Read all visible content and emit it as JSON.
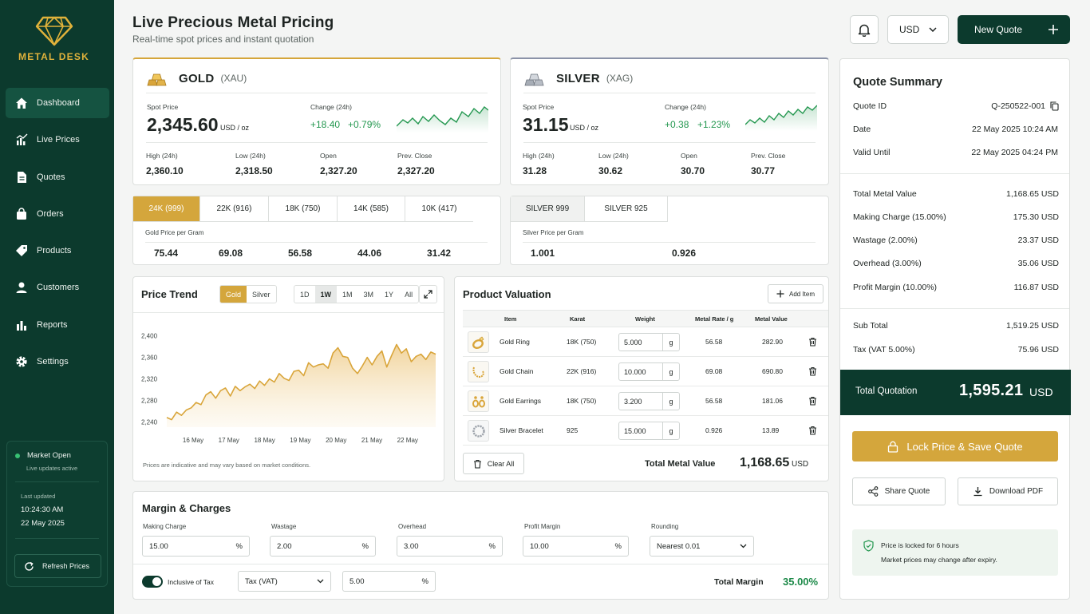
{
  "brand": {
    "name": "METAL DESK"
  },
  "nav": [
    {
      "label": "Dashboard",
      "icon": "home-icon",
      "active": true
    },
    {
      "label": "Live Prices",
      "icon": "bar-chart-icon"
    },
    {
      "label": "Quotes",
      "icon": "document-icon"
    },
    {
      "label": "Orders",
      "icon": "bag-icon"
    },
    {
      "label": "Products",
      "icon": "tag-icon"
    },
    {
      "label": "Customers",
      "icon": "user-icon"
    },
    {
      "label": "Reports",
      "icon": "report-icon"
    },
    {
      "label": "Settings",
      "icon": "gear-icon"
    }
  ],
  "market": {
    "status": "Market Open",
    "sub": "Live updates active",
    "last_updated_label": "Last updated",
    "time": "10:24:30 AM",
    "date": "22 May 2025",
    "refresh_label": "Refresh Prices"
  },
  "header": {
    "title": "Live Precious Metal Pricing",
    "subtitle": "Real-time spot prices and instant quotation",
    "currency": "USD",
    "new_quote_label": "New Quote"
  },
  "gold": {
    "name": "GOLD",
    "code": "(XAU)",
    "spot_label": "Spot Price",
    "spot": "2,345.60",
    "unit": "USD / oz",
    "change_label": "Change (24h)",
    "change_abs": "+18.40",
    "change_pct": "+0.79%",
    "high_label": "High (24h)",
    "high": "2,360.10",
    "low_label": "Low (24h)",
    "low": "2,318.50",
    "open_label": "Open",
    "open": "2,327.20",
    "prev_label": "Prev. Close",
    "prev": "2,327.20"
  },
  "silver": {
    "name": "SILVER",
    "code": "(XAG)",
    "spot_label": "Spot Price",
    "spot": "31.15",
    "unit": "USD / oz",
    "change_label": "Change (24h)",
    "change_abs": "+0.38",
    "change_pct": "+1.23%",
    "high_label": "High (24h)",
    "high": "31.28",
    "low_label": "Low (24h)",
    "low": "30.62",
    "open_label": "Open",
    "open": "30.70",
    "prev_label": "Prev. Close",
    "prev": "30.77"
  },
  "gold_karats": {
    "tabs": [
      "24K (999)",
      "22K (916)",
      "18K (750)",
      "14K (585)",
      "10K (417)"
    ],
    "label": "Gold Price per Gram",
    "values": [
      "75.44",
      "69.08",
      "56.58",
      "44.06",
      "31.42"
    ]
  },
  "silver_grades": {
    "tabs": [
      "SILVER 999",
      "SILVER 925"
    ],
    "label": "Silver Price per Gram",
    "values": [
      "1.001",
      "0.926"
    ]
  },
  "trend": {
    "title": "Price Trend",
    "metal_toggle": [
      "Gold",
      "Silver"
    ],
    "ranges": [
      "1D",
      "1W",
      "1M",
      "3M",
      "1Y",
      "All"
    ],
    "note": "Prices are indicative and may vary based on market conditions."
  },
  "chart_data": {
    "type": "area",
    "title": "",
    "x_ticks": [
      "16 May",
      "17 May",
      "18 May",
      "19 May",
      "20 May",
      "21 May",
      "22 May"
    ],
    "y_ticks": [
      "2,400",
      "2,360",
      "2,320",
      "2,280",
      "2,240"
    ],
    "ylim": [
      2230,
      2410
    ],
    "values": [
      2248,
      2244,
      2258,
      2252,
      2262,
      2266,
      2276,
      2272,
      2290,
      2296,
      2284,
      2298,
      2303,
      2288,
      2306,
      2298,
      2305,
      2310,
      2302,
      2316,
      2308,
      2320,
      2314,
      2330,
      2321,
      2317,
      2334,
      2336,
      2326,
      2350,
      2342,
      2346,
      2348,
      2340,
      2368,
      2378,
      2362,
      2360,
      2340,
      2330,
      2344,
      2360,
      2346,
      2362,
      2372,
      2342,
      2364,
      2384,
      2368,
      2376,
      2352,
      2362,
      2366,
      2356,
      2370,
      2366
    ],
    "color": "#d9a53a",
    "grid": false
  },
  "valuation": {
    "title": "Product Valuation",
    "add_label": "Add Item",
    "headers": [
      "Item",
      "Karat",
      "Weight",
      "Metal Rate / g",
      "Metal Value"
    ],
    "rows": [
      {
        "item": "Gold Ring",
        "karat": "18K (750)",
        "weight": "5.000",
        "unit": "g",
        "rate": "56.58",
        "value": "282.90",
        "icon": "ring-icon"
      },
      {
        "item": "Gold Chain",
        "karat": "22K (916)",
        "weight": "10.000",
        "unit": "g",
        "rate": "69.08",
        "value": "690.80",
        "icon": "chain-icon"
      },
      {
        "item": "Gold Earrings",
        "karat": "18K (750)",
        "weight": "3.200",
        "unit": "g",
        "rate": "56.58",
        "value": "181.06",
        "icon": "earrings-icon"
      },
      {
        "item": "Silver Bracelet",
        "karat": "925",
        "weight": "15.000",
        "unit": "g",
        "rate": "0.926",
        "value": "13.89",
        "icon": "bracelet-icon"
      }
    ],
    "clear_label": "Clear All",
    "total_label": "Total Metal Value",
    "total_value": "1,168.65",
    "total_unit": "USD"
  },
  "margin": {
    "title": "Margin & Charges",
    "fields": [
      {
        "label": "Making Charge",
        "value": "15.00",
        "unit": "%"
      },
      {
        "label": "Wastage",
        "value": "2.00",
        "unit": "%"
      },
      {
        "label": "Overhead",
        "value": "3.00",
        "unit": "%"
      },
      {
        "label": "Profit Margin",
        "value": "10.00",
        "unit": "%"
      }
    ],
    "rounding_label": "Rounding",
    "rounding_value": "Nearest 0.01",
    "tax_toggle_label": "Inclusive of Tax",
    "tax_type": "Tax (VAT)",
    "tax_value": "5.00",
    "tax_unit": "%",
    "total_margin_label": "Total Margin",
    "total_margin_value": "35.00%"
  },
  "quote": {
    "title": "Quote Summary",
    "id_label": "Quote ID",
    "id": "Q-250522-001",
    "date_label": "Date",
    "date": "22 May 2025 10:24 AM",
    "valid_label": "Valid Until",
    "valid": "22 May 2025 04:24 PM",
    "lines": [
      {
        "label": "Total Metal Value",
        "value": "1,168.65 USD"
      },
      {
        "label": "Making Charge (15.00%)",
        "value": "175.30 USD"
      },
      {
        "label": "Wastage (2.00%)",
        "value": "23.37 USD"
      },
      {
        "label": "Overhead (3.00%)",
        "value": "35.06 USD"
      },
      {
        "label": "Profit Margin (10.00%)",
        "value": "116.87 USD"
      }
    ],
    "subtotal_label": "Sub Total",
    "subtotal": "1,519.25 USD",
    "tax_label": "Tax (VAT 5.00%)",
    "tax": "75.96 USD",
    "total_label": "Total Quotation",
    "total": "1,595.21",
    "total_currency": "USD",
    "lock_label": "Lock Price & Save Quote",
    "share_label": "Share Quote",
    "download_label": "Download PDF",
    "note_line1": "Price is locked for 6 hours",
    "note_line2": "Market prices may change after expiry."
  },
  "colors": {
    "sidebar": "#0c3a2d",
    "gold": "#d4a63c",
    "green": "#23974f"
  }
}
